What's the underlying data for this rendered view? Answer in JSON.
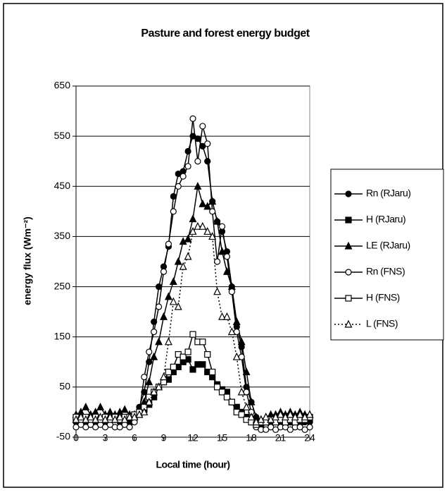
{
  "chart_data": {
    "type": "line",
    "title": "Pasture and forest energy budget",
    "x_label": "Local time (hour)",
    "y_label": "energy flux (Wm⁻²)",
    "x": [
      0,
      0.5,
      1,
      1.5,
      2,
      2.5,
      3,
      3.5,
      4,
      4.5,
      5,
      5.5,
      6,
      6.5,
      7,
      7.5,
      8,
      8.5,
      9,
      9.5,
      10,
      10.5,
      11,
      11.5,
      12,
      12.5,
      13,
      13.5,
      14,
      14.5,
      15,
      15.5,
      16,
      16.5,
      17,
      17.5,
      18,
      18.5,
      19,
      19.5,
      20,
      20.5,
      21,
      21.5,
      22,
      22.5,
      23,
      23.5,
      24
    ],
    "xlim": [
      0,
      24
    ],
    "xticks": [
      0,
      3,
      6,
      9,
      12,
      15,
      18,
      21,
      24
    ],
    "ylim": [
      -50,
      650
    ],
    "yticks": [
      650,
      550,
      450,
      350,
      250,
      150,
      50,
      -50
    ],
    "grid": true,
    "legend": "right",
    "series": [
      {
        "name": "Rn (RJaru)",
        "color": "#000000",
        "marker": "circle",
        "filled": true,
        "dashed": false,
        "values": [
          -20,
          -15,
          -20,
          -25,
          -20,
          -15,
          -20,
          -20,
          -15,
          -20,
          -20,
          -20,
          -10,
          10,
          40,
          100,
          180,
          250,
          290,
          330,
          430,
          475,
          480,
          520,
          550,
          545,
          530,
          500,
          420,
          380,
          360,
          320,
          250,
          170,
          130,
          50,
          20,
          -10,
          -25,
          -20,
          -25,
          -20,
          -20,
          -25,
          -20,
          -20,
          -15,
          -20,
          -20
        ]
      },
      {
        "name": "H (RJaru)",
        "color": "#000000",
        "marker": "square",
        "filled": true,
        "dashed": false,
        "values": [
          -15,
          -10,
          -15,
          -10,
          -15,
          -20,
          -15,
          -10,
          -15,
          -10,
          -15,
          -15,
          -10,
          -5,
          5,
          15,
          30,
          50,
          60,
          65,
          80,
          90,
          100,
          105,
          85,
          95,
          95,
          80,
          70,
          55,
          45,
          40,
          20,
          10,
          0,
          -10,
          -15,
          -20,
          -25,
          -20,
          -20,
          -15,
          -20,
          -15,
          -20,
          -15,
          -20,
          -15,
          -15
        ]
      },
      {
        "name": "LE (RJaru)",
        "color": "#000000",
        "marker": "triangle",
        "filled": true,
        "dashed": false,
        "values": [
          -5,
          0,
          10,
          -5,
          0,
          10,
          -5,
          0,
          -5,
          0,
          5,
          -5,
          -5,
          5,
          20,
          60,
          110,
          140,
          190,
          230,
          260,
          300,
          340,
          345,
          385,
          450,
          415,
          410,
          420,
          380,
          320,
          280,
          250,
          180,
          140,
          80,
          20,
          -10,
          -15,
          -10,
          -5,
          -5,
          0,
          -5,
          0,
          -5,
          0,
          -5,
          -5
        ]
      },
      {
        "name": "Rn (FNS)",
        "color": "#000000",
        "marker": "circle",
        "filled": false,
        "dashed": false,
        "values": [
          -30,
          -25,
          -30,
          -25,
          -30,
          -25,
          -30,
          -25,
          -30,
          -30,
          -25,
          -30,
          -20,
          0,
          70,
          120,
          160,
          210,
          280,
          335,
          400,
          450,
          470,
          490,
          585,
          500,
          570,
          535,
          400,
          300,
          370,
          310,
          240,
          160,
          110,
          40,
          0,
          -30,
          -35,
          -35,
          -30,
          -35,
          -30,
          -30,
          -35,
          -30,
          -30,
          -35,
          -30
        ]
      },
      {
        "name": "H (FNS)",
        "color": "#000000",
        "marker": "square",
        "filled": false,
        "dashed": false,
        "values": [
          -10,
          -15,
          -10,
          -15,
          -10,
          -15,
          -10,
          -15,
          -10,
          -15,
          -10,
          -10,
          -5,
          0,
          10,
          30,
          40,
          50,
          60,
          80,
          90,
          115,
          110,
          120,
          155,
          140,
          140,
          115,
          80,
          50,
          40,
          30,
          20,
          0,
          -5,
          -15,
          -20,
          -25,
          -20,
          -20,
          -15,
          -20,
          -15,
          -20,
          -15,
          -20,
          -15,
          -15,
          -10
        ]
      },
      {
        "name": "L (FNS)",
        "color": "#000000",
        "marker": "triangle",
        "filled": false,
        "dashed": true,
        "values": [
          -15,
          -10,
          -15,
          -10,
          -15,
          -10,
          -15,
          -10,
          -15,
          -10,
          -15,
          -10,
          -10,
          -5,
          0,
          20,
          40,
          50,
          70,
          140,
          220,
          210,
          290,
          310,
          360,
          370,
          370,
          360,
          350,
          240,
          190,
          190,
          160,
          110,
          40,
          10,
          -10,
          -20,
          -15,
          -10,
          -15,
          -10,
          -5,
          -10,
          -5,
          -10,
          -5,
          -10,
          -5
        ]
      }
    ]
  }
}
